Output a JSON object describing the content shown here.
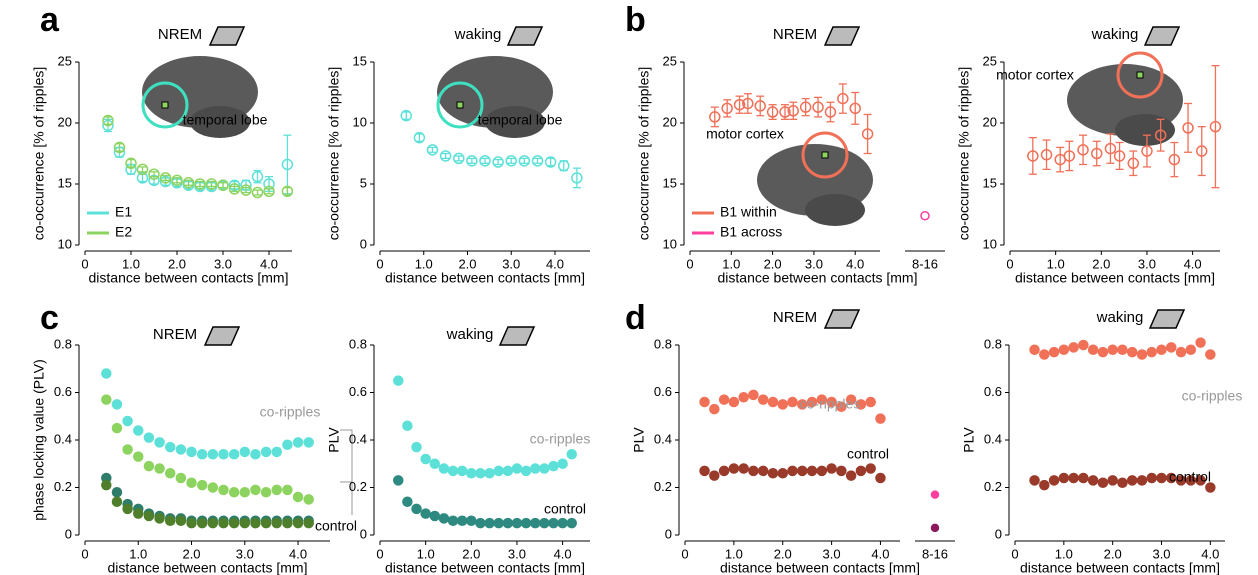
{
  "chart_data": [
    {
      "type": "scatter",
      "panel": "a",
      "title": "NREM",
      "xlabel": "distance between contacts [mm]",
      "ylabel": "co-occurrence [% of ripples]",
      "xlim": [
        0,
        4.5
      ],
      "xticks": [
        0,
        {
          "value": 1,
          "label": "1.0"
        },
        {
          "value": 2,
          "label": "2.0"
        },
        {
          "value": 3,
          "label": "3.0"
        },
        {
          "value": 4,
          "label": "4.0"
        }
      ],
      "ylim": [
        10,
        25
      ],
      "yticks": [
        10,
        15,
        20,
        25
      ],
      "marker": "open",
      "legend": "lower left",
      "x": [
        0.5,
        0.75,
        1.0,
        1.25,
        1.5,
        1.75,
        2.0,
        2.25,
        2.5,
        2.75,
        3.0,
        3.25,
        3.5,
        3.75,
        4.0,
        4.4
      ],
      "series": [
        {
          "name": "E1",
          "color": "#5ce0d8",
          "values": [
            19.8,
            17.6,
            16.2,
            15.5,
            15.3,
            15.2,
            15.1,
            14.9,
            14.8,
            14.8,
            14.9,
            14.9,
            14.9,
            15.6,
            15.0,
            16.6
          ],
          "errors": [
            0.5,
            0.4,
            0.4,
            0.3,
            0.3,
            0.3,
            0.3,
            0.3,
            0.3,
            0.3,
            0.3,
            0.3,
            0.4,
            0.5,
            0.6,
            2.4
          ]
        },
        {
          "name": "E2",
          "color": "#8dd35f",
          "values": [
            20.2,
            18.0,
            16.7,
            16.2,
            15.8,
            15.5,
            15.3,
            15.1,
            15.0,
            15.0,
            14.9,
            14.6,
            14.5,
            14.3,
            14.4,
            14.4
          ],
          "errors": [
            0.3,
            0.3,
            0.3,
            0.2,
            0.2,
            0.2,
            0.2,
            0.2,
            0.2,
            0.2,
            0.2,
            0.2,
            0.2,
            0.2,
            0.2,
            0.3
          ]
        }
      ],
      "annotations": [
        {
          "text": "temporal lobe",
          "color": "#000000"
        }
      ]
    },
    {
      "type": "scatter",
      "title": "waking",
      "xlabel": "distance between contacts [mm]",
      "ylabel": "co-occurrence [% of ripples]",
      "xlim": [
        0,
        4.8
      ],
      "xticks": [
        0,
        {
          "value": 1,
          "label": "1.0"
        },
        {
          "value": 2,
          "label": "2.0"
        },
        {
          "value": 3,
          "label": "3.0"
        },
        {
          "value": 4,
          "label": "4.0"
        }
      ],
      "ylim": [
        0,
        15
      ],
      "yticks": [
        0,
        5,
        10,
        15
      ],
      "marker": "open",
      "x": [
        0.6,
        0.9,
        1.2,
        1.5,
        1.8,
        2.1,
        2.4,
        2.7,
        3.0,
        3.3,
        3.6,
        3.9,
        4.2,
        4.5
      ],
      "series": [
        {
          "color": "#5ce0d8",
          "values": [
            10.6,
            8.8,
            7.8,
            7.3,
            7.1,
            6.9,
            6.9,
            6.8,
            6.9,
            6.9,
            6.9,
            6.8,
            6.5,
            5.5
          ],
          "errors": [
            0.3,
            0.3,
            0.2,
            0.2,
            0.2,
            0.2,
            0.2,
            0.2,
            0.2,
            0.2,
            0.2,
            0.3,
            0.4,
            0.8
          ]
        }
      ],
      "annotations": [
        {
          "text": "temporal lobe",
          "color": "#000000"
        }
      ]
    },
    {
      "type": "scatter",
      "panel": "b",
      "title": "NREM",
      "xlabel": "distance between contacts [mm]",
      "ylabel": "co-occurrence [% of ripples]",
      "xlim": [
        0,
        4.6
      ],
      "xticks": [
        0,
        {
          "value": 1,
          "label": "1.0"
        },
        {
          "value": 2,
          "label": "2.0"
        },
        {
          "value": 3,
          "label": "3.0"
        },
        {
          "value": 4,
          "label": "4.0"
        }
      ],
      "ylim": [
        10,
        25
      ],
      "yticks": [
        10,
        15,
        20,
        25
      ],
      "marker": "open",
      "legend": "lower left",
      "x": [
        0.6,
        0.9,
        1.2,
        1.4,
        1.7,
        2.0,
        2.3,
        2.5,
        2.8,
        3.1,
        3.4,
        3.7,
        4.0,
        4.3
      ],
      "series": [
        {
          "name": "B1 within",
          "color": "#f07058",
          "values": [
            20.5,
            21.2,
            21.5,
            21.6,
            21.4,
            20.9,
            20.9,
            21.0,
            21.3,
            21.3,
            20.9,
            22.0,
            21.2,
            19.1
          ],
          "errors": [
            0.8,
            0.7,
            0.7,
            0.8,
            0.8,
            0.6,
            0.6,
            0.7,
            0.7,
            0.8,
            0.8,
            1.2,
            1.3,
            1.6
          ]
        }
      ],
      "categories": [
        "8-16"
      ],
      "category_series": [
        {
          "name": "B1 across",
          "color": "#ff3fa0",
          "values": [
            12.4
          ]
        }
      ],
      "annotations": [
        {
          "text": "motor cortex",
          "color": "#000000"
        }
      ]
    },
    {
      "type": "scatter",
      "title": "waking",
      "xlabel": "distance between contacts [mm]",
      "ylabel": "co-occurrence [% of ripples]",
      "xlim": [
        0,
        4.6
      ],
      "xticks": [
        0,
        {
          "value": 1,
          "label": "1.0"
        },
        {
          "value": 2,
          "label": "2.0"
        },
        {
          "value": 3,
          "label": "3.0"
        },
        {
          "value": 4,
          "label": "4.0"
        }
      ],
      "ylim": [
        10,
        25
      ],
      "yticks": [
        10,
        15,
        20,
        25
      ],
      "marker": "open",
      "x": [
        0.5,
        0.8,
        1.1,
        1.3,
        1.6,
        1.9,
        2.2,
        2.4,
        2.7,
        3.0,
        3.3,
        3.6,
        3.9,
        4.2,
        4.5
      ],
      "series": [
        {
          "color": "#f07058",
          "values": [
            17.3,
            17.4,
            17.0,
            17.3,
            17.8,
            17.5,
            17.9,
            17.3,
            16.7,
            17.7,
            19.0,
            17.0,
            19.6,
            17.7,
            19.7
          ],
          "errors": [
            1.5,
            1.2,
            1.0,
            1.2,
            1.2,
            1.0,
            1.2,
            1.1,
            1.0,
            1.3,
            1.3,
            1.4,
            2.0,
            2.0,
            5.0
          ]
        }
      ],
      "annotations": [
        {
          "text": "motor cortex",
          "color": "#000000"
        }
      ]
    },
    {
      "type": "scatter",
      "panel": "c",
      "title": "NREM",
      "xlabel": "distance between contacts [mm]",
      "ylabel": "phase locking value (PLV)",
      "xlim": [
        0,
        4.6
      ],
      "xticks": [
        0,
        {
          "value": 1,
          "label": "1.0"
        },
        {
          "value": 2,
          "label": "2.0"
        },
        {
          "value": 3,
          "label": "3.0"
        },
        {
          "value": 4,
          "label": "4.0"
        }
      ],
      "ylim": [
        0,
        0.8
      ],
      "yticks": [
        0,
        0.2,
        0.4,
        0.6,
        0.8
      ],
      "marker": "filled",
      "x": [
        0.4,
        0.6,
        0.8,
        1.0,
        1.2,
        1.4,
        1.6,
        1.8,
        2.0,
        2.2,
        2.4,
        2.6,
        2.8,
        3.0,
        3.2,
        3.4,
        3.6,
        3.8,
        4.0,
        4.2
      ],
      "series": [
        {
          "color": "#5ce0d8",
          "values": [
            0.68,
            0.55,
            0.48,
            0.44,
            0.41,
            0.39,
            0.37,
            0.36,
            0.35,
            0.34,
            0.34,
            0.34,
            0.34,
            0.35,
            0.34,
            0.35,
            0.35,
            0.38,
            0.39,
            0.39
          ]
        },
        {
          "color": "#8dd35f",
          "values": [
            0.57,
            0.45,
            0.36,
            0.33,
            0.29,
            0.28,
            0.26,
            0.24,
            0.22,
            0.21,
            0.2,
            0.19,
            0.18,
            0.18,
            0.19,
            0.18,
            0.19,
            0.19,
            0.16,
            0.15
          ]
        },
        {
          "color": "#2e7d6a",
          "values": [
            0.24,
            0.18,
            0.13,
            0.11,
            0.09,
            0.08,
            0.07,
            0.07,
            0.06,
            0.06,
            0.06,
            0.06,
            0.06,
            0.06,
            0.06,
            0.06,
            0.06,
            0.06,
            0.06,
            0.06
          ]
        },
        {
          "color": "#4f7f2a",
          "values": [
            0.21,
            0.14,
            0.11,
            0.09,
            0.08,
            0.07,
            0.06,
            0.06,
            0.05,
            0.05,
            0.05,
            0.05,
            0.05,
            0.05,
            0.05,
            0.05,
            0.05,
            0.05,
            0.05,
            0.05
          ]
        }
      ],
      "annotations": [
        {
          "text": "co-ripples",
          "color": "#999999"
        },
        {
          "text": "control",
          "color": "#000000"
        }
      ]
    },
    {
      "type": "scatter",
      "title": "waking",
      "xlabel": "distance between contacts [mm]",
      "ylabel": "PLV",
      "xlim": [
        0,
        4.6
      ],
      "xticks": [
        0,
        {
          "value": 1,
          "label": "1.0"
        },
        {
          "value": 2,
          "label": "2.0"
        },
        {
          "value": 3,
          "label": "3.0"
        },
        {
          "value": 4,
          "label": "4.0"
        }
      ],
      "ylim": [
        0,
        0.8
      ],
      "yticks": [
        0,
        0.2,
        0.4,
        0.6,
        0.8
      ],
      "marker": "filled",
      "x": [
        0.4,
        0.6,
        0.8,
        1.0,
        1.2,
        1.4,
        1.6,
        1.8,
        2.0,
        2.2,
        2.4,
        2.6,
        2.8,
        3.0,
        3.2,
        3.4,
        3.6,
        3.8,
        4.0,
        4.2
      ],
      "series": [
        {
          "color": "#5ce0d8",
          "values": [
            0.65,
            0.46,
            0.37,
            0.32,
            0.3,
            0.28,
            0.27,
            0.27,
            0.26,
            0.26,
            0.26,
            0.27,
            0.27,
            0.28,
            0.27,
            0.28,
            0.28,
            0.29,
            0.3,
            0.34
          ]
        },
        {
          "color": "#2e8a80",
          "values": [
            0.23,
            0.14,
            0.11,
            0.09,
            0.08,
            0.07,
            0.06,
            0.06,
            0.06,
            0.05,
            0.05,
            0.05,
            0.05,
            0.05,
            0.05,
            0.05,
            0.05,
            0.05,
            0.05,
            0.05
          ]
        }
      ],
      "annotations": [
        {
          "text": "co-ripples",
          "color": "#999999"
        },
        {
          "text": "control",
          "color": "#000000"
        }
      ]
    },
    {
      "type": "scatter",
      "panel": "d",
      "title": "NREM",
      "xlabel": "distance between contacts [mm]",
      "ylabel": "PLV",
      "xlim": [
        0,
        4.4
      ],
      "xticks": [
        0,
        {
          "value": 1,
          "label": "1.0"
        },
        {
          "value": 2,
          "label": "2.0"
        },
        {
          "value": 3,
          "label": "3.0"
        },
        {
          "value": 4,
          "label": "4.0"
        }
      ],
      "ylim": [
        0,
        0.8
      ],
      "yticks": [
        0,
        0.2,
        0.4,
        0.6,
        0.8
      ],
      "marker": "filled",
      "x": [
        0.4,
        0.6,
        0.8,
        1.0,
        1.2,
        1.4,
        1.6,
        1.8,
        2.0,
        2.2,
        2.4,
        2.6,
        2.8,
        3.0,
        3.2,
        3.4,
        3.6,
        3.8,
        4.0
      ],
      "series": [
        {
          "color": "#f07058",
          "values": [
            0.56,
            0.53,
            0.57,
            0.56,
            0.58,
            0.59,
            0.57,
            0.56,
            0.55,
            0.56,
            0.55,
            0.56,
            0.57,
            0.56,
            0.54,
            0.57,
            0.55,
            0.56,
            0.49
          ]
        },
        {
          "color": "#9a3a2a",
          "values": [
            0.27,
            0.25,
            0.27,
            0.28,
            0.28,
            0.27,
            0.27,
            0.26,
            0.26,
            0.27,
            0.27,
            0.27,
            0.27,
            0.28,
            0.27,
            0.25,
            0.27,
            0.28,
            0.24
          ]
        }
      ],
      "categories": [
        "8-16"
      ],
      "category_series": [
        {
          "color": "#ff3fa0",
          "values": [
            0.17
          ]
        },
        {
          "color": "#8b1a5a",
          "values": [
            0.03
          ]
        }
      ],
      "annotations": [
        {
          "text": "co-ripples",
          "color": "#999999"
        },
        {
          "text": "control",
          "color": "#000000"
        }
      ]
    },
    {
      "type": "scatter",
      "title": "waking",
      "xlabel": "distance between contacts [mm]",
      "ylabel": "PLV",
      "xlim": [
        0,
        4.3
      ],
      "xticks": [
        0,
        {
          "value": 1,
          "label": "1.0"
        },
        {
          "value": 2,
          "label": "2.0"
        },
        {
          "value": 3,
          "label": "3.0"
        },
        {
          "value": 4,
          "label": "4.0"
        }
      ],
      "ylim": [
        0,
        0.8
      ],
      "yticks": [
        0,
        0.2,
        0.4,
        0.6,
        0.8
      ],
      "marker": "filled",
      "x": [
        0.4,
        0.6,
        0.8,
        1.0,
        1.2,
        1.4,
        1.6,
        1.8,
        2.0,
        2.2,
        2.4,
        2.6,
        2.8,
        3.0,
        3.2,
        3.4,
        3.6,
        3.8,
        4.0
      ],
      "series": [
        {
          "color": "#f07058",
          "values": [
            0.78,
            0.76,
            0.77,
            0.78,
            0.79,
            0.8,
            0.78,
            0.77,
            0.78,
            0.78,
            0.77,
            0.76,
            0.77,
            0.78,
            0.79,
            0.77,
            0.78,
            0.81,
            0.76
          ]
        },
        {
          "color": "#9a3a2a",
          "values": [
            0.23,
            0.21,
            0.23,
            0.24,
            0.24,
            0.24,
            0.23,
            0.22,
            0.23,
            0.22,
            0.23,
            0.23,
            0.24,
            0.24,
            0.24,
            0.23,
            0.23,
            0.23,
            0.2
          ]
        }
      ],
      "annotations": [
        {
          "text": "co-ripples",
          "color": "#999999"
        },
        {
          "text": "control",
          "color": "#000000"
        }
      ]
    }
  ]
}
